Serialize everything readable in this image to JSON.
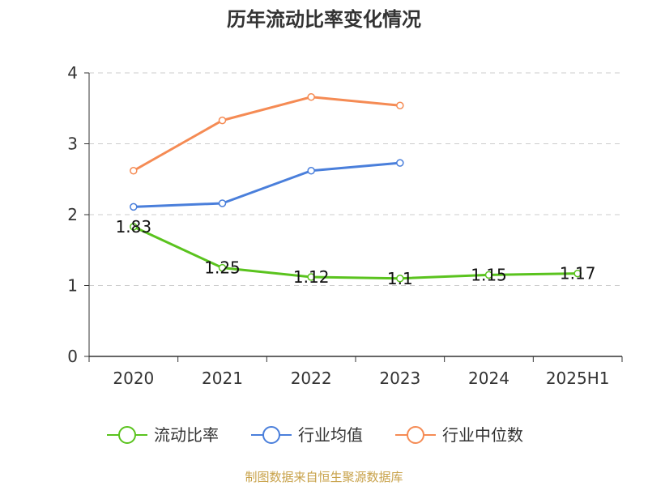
{
  "chart_data": {
    "type": "line",
    "title": "历年流动比率变化情况",
    "categories": [
      "2020",
      "2021",
      "2022",
      "2023",
      "2024",
      "2025H1"
    ],
    "ylim": [
      0,
      4
    ],
    "yticks": [
      "0",
      "1",
      "2",
      "3",
      "4"
    ],
    "grid": true,
    "legend_position": "bottom",
    "series": [
      {
        "name": "流动比率",
        "color": "#5ac31e",
        "values": [
          1.83,
          1.25,
          1.12,
          1.1,
          1.15,
          1.17
        ],
        "labels": [
          "1.83",
          "1.25",
          "1.12",
          "1.1",
          "1.15",
          "1.17"
        ]
      },
      {
        "name": "行业均值",
        "color": "#4a7fdb",
        "values": [
          2.11,
          2.16,
          2.62,
          2.73,
          null,
          null
        ],
        "labels": null
      },
      {
        "name": "行业中位数",
        "color": "#f58b54",
        "values": [
          2.62,
          3.33,
          3.66,
          3.54,
          null,
          null
        ],
        "labels": null
      }
    ]
  },
  "source": "制图数据来自恒生聚源数据库"
}
